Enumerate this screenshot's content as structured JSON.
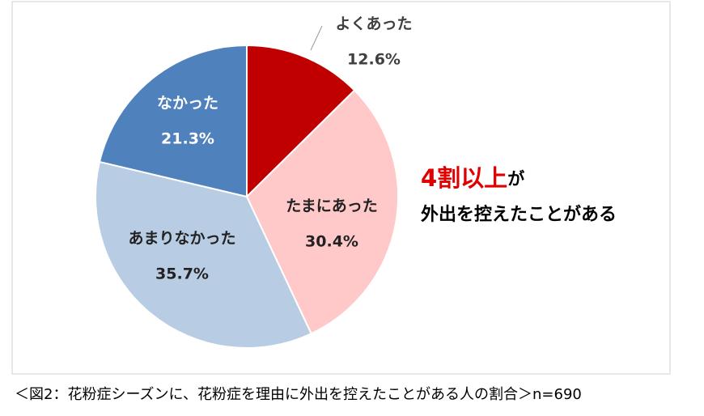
{
  "chart_data": {
    "type": "pie",
    "categories": [
      "よくあった",
      "たまにあった",
      "あまりなかった",
      "なかった"
    ],
    "values": [
      12.6,
      30.4,
      35.7,
      21.3
    ],
    "value_labels": [
      "12.6%",
      "30.4%",
      "35.7%",
      "21.3%"
    ],
    "colors": [
      "#c00000",
      "#ffc9c9",
      "#b8cce4",
      "#4f81bd"
    ],
    "annotation": {
      "highlight": "4割以上",
      "rest": "が",
      "line2": "外出を控えたことがある"
    },
    "caption": "＜図2：花粉症シーズンに、花粉症を理由に外出を控えたことがある人の割合＞n=690"
  }
}
